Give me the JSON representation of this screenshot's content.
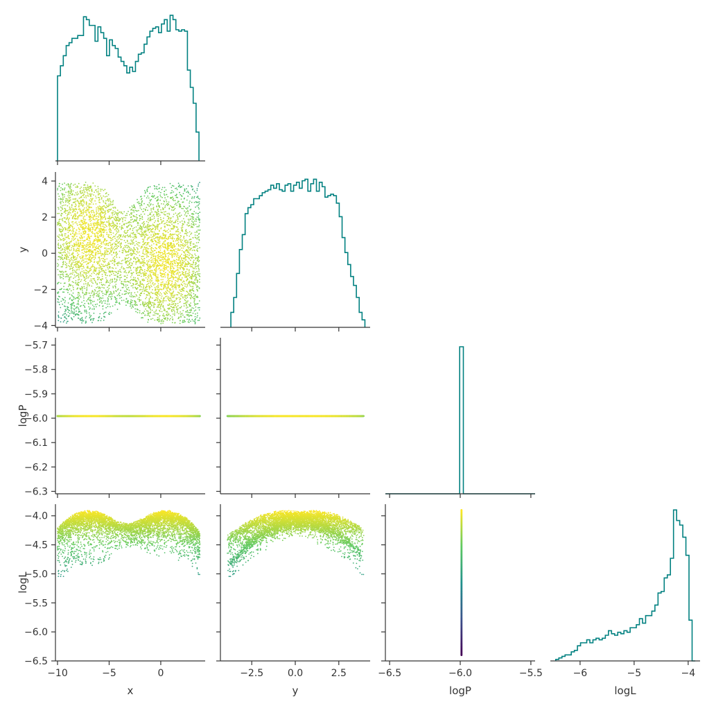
{
  "palette": {
    "hist": "#008080",
    "axis": "#333333",
    "viridis": [
      "#440154",
      "#3b528b",
      "#21918c",
      "#5ec962",
      "#fde725"
    ]
  },
  "chart_data": [
    {
      "name": "hist-x",
      "type": "histogram",
      "variable": "x",
      "xlim": [
        -10.2,
        4.3
      ],
      "bin_edges_range": [
        -10,
        3.7
      ],
      "y_ticks_shown": false,
      "counts": [
        0.59,
        0.66,
        0.73,
        0.8,
        0.82,
        0.85,
        0.85,
        0.87,
        0.87,
        1.0,
        0.98,
        0.94,
        0.94,
        0.83,
        0.93,
        0.89,
        0.85,
        0.73,
        0.84,
        0.8,
        0.78,
        0.72,
        0.69,
        0.66,
        0.61,
        0.65,
        0.62,
        0.69,
        0.74,
        0.75,
        0.81,
        0.86,
        0.9,
        0.92,
        0.93,
        0.89,
        0.95,
        0.98,
        0.9,
        1.01,
        0.98,
        0.91,
        0.9,
        0.91,
        0.9,
        0.63,
        0.51,
        0.4,
        0.2
      ]
    },
    {
      "name": "scatter-x-y",
      "type": "scatter",
      "x_variable": "x",
      "y_variable": "y",
      "xlim": [
        -10.2,
        4.3
      ],
      "ylim": [
        -4.1,
        4.5
      ],
      "y_ticks": [
        -4,
        -2,
        0,
        2,
        4
      ],
      "y_tick_labels": [
        "−4",
        "−2",
        "0",
        "2",
        "4"
      ],
      "ylabel": "y",
      "colored_by": "logL",
      "description_of_distribution": "uniform prior x in [-10,4], y in [-4,4] with two bright modes near (-7,1) and (0.5,-0.5)"
    },
    {
      "name": "hist-y",
      "type": "histogram",
      "variable": "y",
      "xlim": [
        -4.3,
        4.3
      ],
      "bin_edges_range": [
        -3.7,
        4.0
      ],
      "y_ticks_shown": false,
      "counts": [
        0.1,
        0.2,
        0.36,
        0.52,
        0.62,
        0.76,
        0.8,
        0.82,
        0.86,
        0.86,
        0.88,
        0.9,
        0.91,
        0.92,
        0.95,
        0.93,
        0.96,
        0.92,
        0.91,
        0.95,
        0.96,
        0.91,
        0.95,
        0.97,
        0.93,
        0.98,
        0.99,
        0.91,
        0.96,
        0.99,
        0.91,
        0.97,
        0.94,
        0.87,
        0.88,
        0.89,
        0.88,
        0.83,
        0.74,
        0.6,
        0.5,
        0.42,
        0.34,
        0.28,
        0.2,
        0.1,
        0.05
      ]
    },
    {
      "name": "scatter-x-logP",
      "type": "scatter",
      "x_variable": "x",
      "y_variable": "logP",
      "xlim": [
        -10.2,
        4.3
      ],
      "ylim": [
        -6.31,
        -5.67
      ],
      "y_ticks": [
        -5.7,
        -5.8,
        -5.9,
        -6.0,
        -6.1,
        -6.2,
        -6.3
      ],
      "y_tick_labels": [
        "−5.7",
        "−5.8",
        "−5.9",
        "−6.0",
        "−6.1",
        "−6.2",
        "−6.3"
      ],
      "ylabel": "logP",
      "constant_value": -5.991,
      "x_range_of_points": [
        -10,
        3.9
      ]
    },
    {
      "name": "scatter-y-logP",
      "type": "scatter",
      "x_variable": "y",
      "y_variable": "logP",
      "xlim": [
        -4.3,
        4.3
      ],
      "ylim": [
        -6.31,
        -5.67
      ],
      "constant_value": -5.991,
      "x_range_of_points": [
        -4,
        4
      ]
    },
    {
      "name": "hist-logP",
      "type": "histogram",
      "variable": "logP",
      "xlim": [
        -6.53,
        -5.47
      ],
      "spike_at": -5.991,
      "spike_height": 1.0,
      "y_ticks_shown": false
    },
    {
      "name": "scatter-x-logL",
      "type": "scatter",
      "x_variable": "x",
      "y_variable": "logL",
      "xlim": [
        -10.2,
        4.3
      ],
      "ylim": [
        -6.5,
        -3.8
      ],
      "y_ticks": [
        -4.0,
        -4.5,
        -5.0,
        -5.5,
        -6.0,
        -6.5
      ],
      "y_tick_labels": [
        "−4.0",
        "−4.5",
        "−5.0",
        "−5.5",
        "−6.0",
        "−6.5"
      ],
      "ylabel": "logL",
      "x_ticks": [
        -10,
        -5,
        0
      ],
      "x_tick_labels": [
        "−10",
        "−5",
        "0"
      ],
      "xlabel": "x"
    },
    {
      "name": "scatter-y-logL",
      "type": "scatter",
      "x_variable": "y",
      "y_variable": "logL",
      "xlim": [
        -4.3,
        4.3
      ],
      "ylim": [
        -6.5,
        -3.8
      ],
      "x_ticks": [
        -2.5,
        0.0,
        2.5
      ],
      "x_tick_labels": [
        "−2.5",
        "0.0",
        "2.5"
      ],
      "xlabel": "y"
    },
    {
      "name": "scatter-logP-logL",
      "type": "scatter",
      "x_variable": "logP",
      "y_variable": "logL",
      "xlim": [
        -6.53,
        -5.47
      ],
      "ylim": [
        -6.5,
        -3.8
      ],
      "x_ticks": [
        -6.5,
        -6.0,
        -5.5
      ],
      "x_tick_labels": [
        "−6.5",
        "−6.0",
        "−5.5"
      ],
      "xlabel": "logP",
      "constant_x": -5.991,
      "y_range_of_points": [
        -6.4,
        -3.9
      ]
    },
    {
      "name": "hist-logL",
      "type": "histogram",
      "variable": "logL",
      "xlim": [
        -6.55,
        -3.78
      ],
      "bin_edges_range": [
        -6.45,
        -3.87
      ],
      "x_ticks": [
        -6,
        -5,
        -4
      ],
      "x_tick_labels": [
        "−6",
        "−5",
        "−4"
      ],
      "xlabel": "logL",
      "y_ticks_shown": false,
      "counts": [
        0.01,
        0.02,
        0.03,
        0.04,
        0.04,
        0.06,
        0.07,
        0.1,
        0.12,
        0.12,
        0.14,
        0.12,
        0.14,
        0.15,
        0.14,
        0.15,
        0.17,
        0.2,
        0.18,
        0.17,
        0.19,
        0.18,
        0.2,
        0.19,
        0.22,
        0.22,
        0.24,
        0.28,
        0.25,
        0.3,
        0.3,
        0.33,
        0.37,
        0.45,
        0.46,
        0.55,
        0.57,
        0.68,
        1.0,
        0.93,
        0.9,
        0.82,
        0.7,
        0.27,
        0.0
      ]
    }
  ]
}
